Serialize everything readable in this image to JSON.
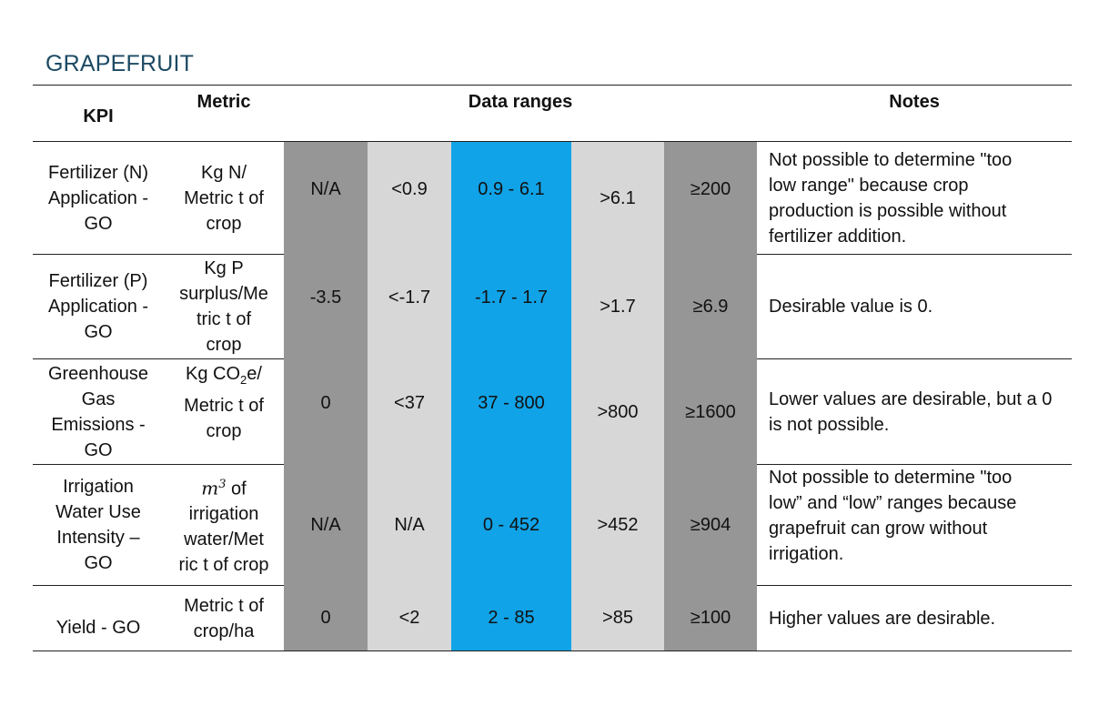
{
  "title": "GRAPEFRUIT",
  "headers": {
    "kpi": "KPI",
    "metric": "Metric",
    "ranges": "Data ranges",
    "notes": "Notes"
  },
  "rows": [
    {
      "kpi": [
        "Fertilizer (N)",
        "Application -",
        "GO"
      ],
      "metric": [
        "Kg N/",
        "Metric t of",
        "crop"
      ],
      "ranges": [
        "N/A",
        "<0.9",
        "0.9 - 6.1",
        ">6.1",
        "≥200"
      ],
      "notes": [
        "Not possible to determine \"too",
        "low range\" because crop",
        "production is possible without",
        "fertilizer addition."
      ]
    },
    {
      "kpi": [
        "Fertilizer (P)",
        "Application -",
        "GO"
      ],
      "metric": [
        "Kg P",
        "surplus/Me",
        "tric t of",
        "crop"
      ],
      "ranges": [
        "-3.5",
        "<-1.7",
        "-1.7 - 1.7",
        ">1.7",
        "≥6.9"
      ],
      "notes": [
        "Desirable value is 0."
      ]
    },
    {
      "kpi": [
        "Greenhouse",
        "Gas",
        "Emissions -",
        "GO"
      ],
      "metric": {
        "prefix": "Kg CO",
        "sub": "2",
        "suffix": "e/",
        "line2": "Metric t of",
        "line3": "crop"
      },
      "ranges": [
        "0",
        "<37",
        "37 - 800",
        ">800",
        "≥1600"
      ],
      "notes": [
        "Lower values are desirable, but a 0",
        "is not possible."
      ]
    },
    {
      "kpi": [
        "Irrigation",
        "Water Use",
        "Intensity –",
        "GO"
      ],
      "metric": {
        "base": "m",
        "sup": "3",
        "suffix": " of",
        "line2": "irrigation",
        "line3": "water/Met",
        "line4": "ric t of crop"
      },
      "ranges": [
        "N/A",
        "N/A",
        "0 - 452",
        ">452",
        "≥904"
      ],
      "notes": [
        "Not possible to determine \"too",
        "low” and “low” ranges because",
        "grapefruit can grow without",
        "irrigation."
      ]
    },
    {
      "kpi": [
        "Yield - GO"
      ],
      "metric": [
        "Metric t of",
        "crop/ha"
      ],
      "ranges": [
        "0",
        "<2",
        "2 - 85",
        ">85",
        "≥100"
      ],
      "notes": [
        "Higher values are desirable."
      ]
    }
  ]
}
